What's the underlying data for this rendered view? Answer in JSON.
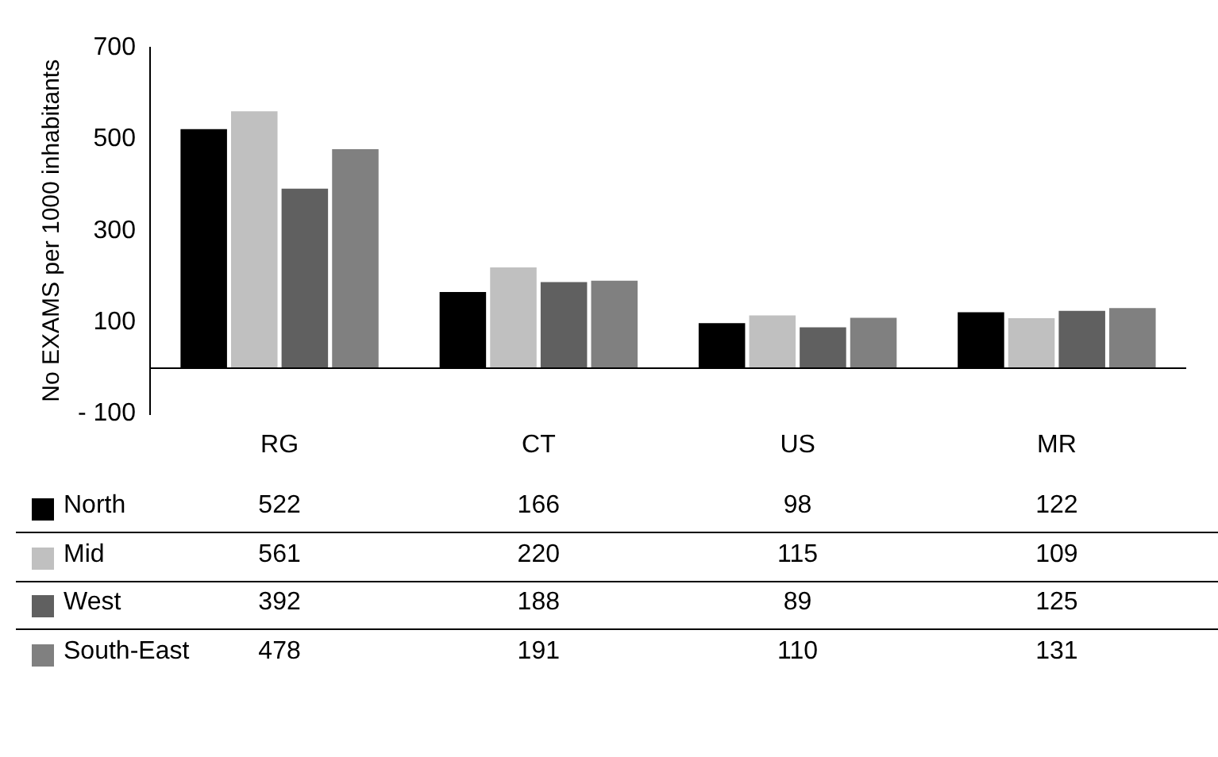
{
  "chart_data": {
    "type": "bar",
    "ylabel": "No EXAMS per 1000 inhabitants",
    "categories": [
      "RG",
      "CT",
      "US",
      "MR"
    ],
    "series": [
      {
        "name": "North",
        "color": "#000000",
        "values": [
          522,
          166,
          98,
          122
        ]
      },
      {
        "name": "Mid",
        "color": "#c0c0c0",
        "values": [
          561,
          220,
          115,
          109
        ]
      },
      {
        "name": "West",
        "color": "#606060",
        "values": [
          392,
          188,
          89,
          125
        ]
      },
      {
        "name": "South-East",
        "color": "#808080",
        "values": [
          478,
          191,
          110,
          131
        ]
      }
    ],
    "ylim": [
      -100,
      700
    ],
    "yticks": [
      -100,
      100,
      300,
      500,
      700
    ],
    "grid": false,
    "legend": "bottom",
    "data_labels": true
  }
}
